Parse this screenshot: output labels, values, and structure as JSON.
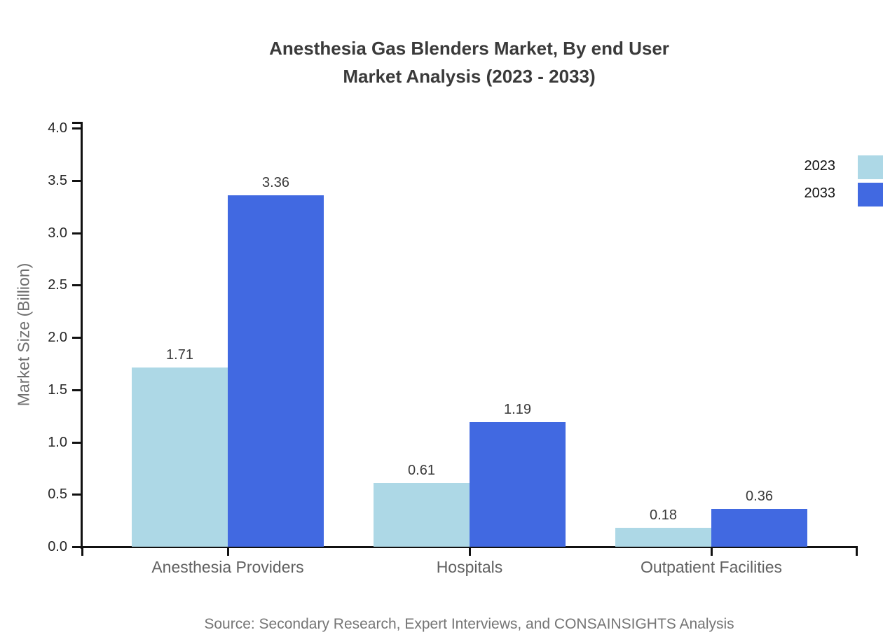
{
  "title": {
    "line1": "Anesthesia Gas Blenders Market, By end User",
    "line2": "Market Analysis (2023 - 2033)"
  },
  "source": "Source: Secondary Research, Expert Interviews, and CONSAINSIGHTS Analysis",
  "chart_data": {
    "type": "bar",
    "title": "Anesthesia Gas Blenders Market, By end User Market Analysis (2023 - 2033)",
    "categories": [
      "Anesthesia Providers",
      "Hospitals",
      "Outpatient Facilities"
    ],
    "series": [
      {
        "name": "2023",
        "color": "#ADD8E6",
        "values": [
          1.71,
          0.61,
          0.18
        ]
      },
      {
        "name": "2033",
        "color": "#4169E1",
        "values": [
          3.36,
          1.19,
          0.36
        ]
      }
    ],
    "xlabel": "",
    "ylabel": "Market Size (Billion)",
    "ylim": [
      0,
      4
    ],
    "ytick_step": 0.5,
    "ytick_decimals": 1,
    "value_label_decimals": 2,
    "grid": false,
    "legend_position": "top-right",
    "axis_color": "#111111",
    "background_color": "#ffffff"
  }
}
